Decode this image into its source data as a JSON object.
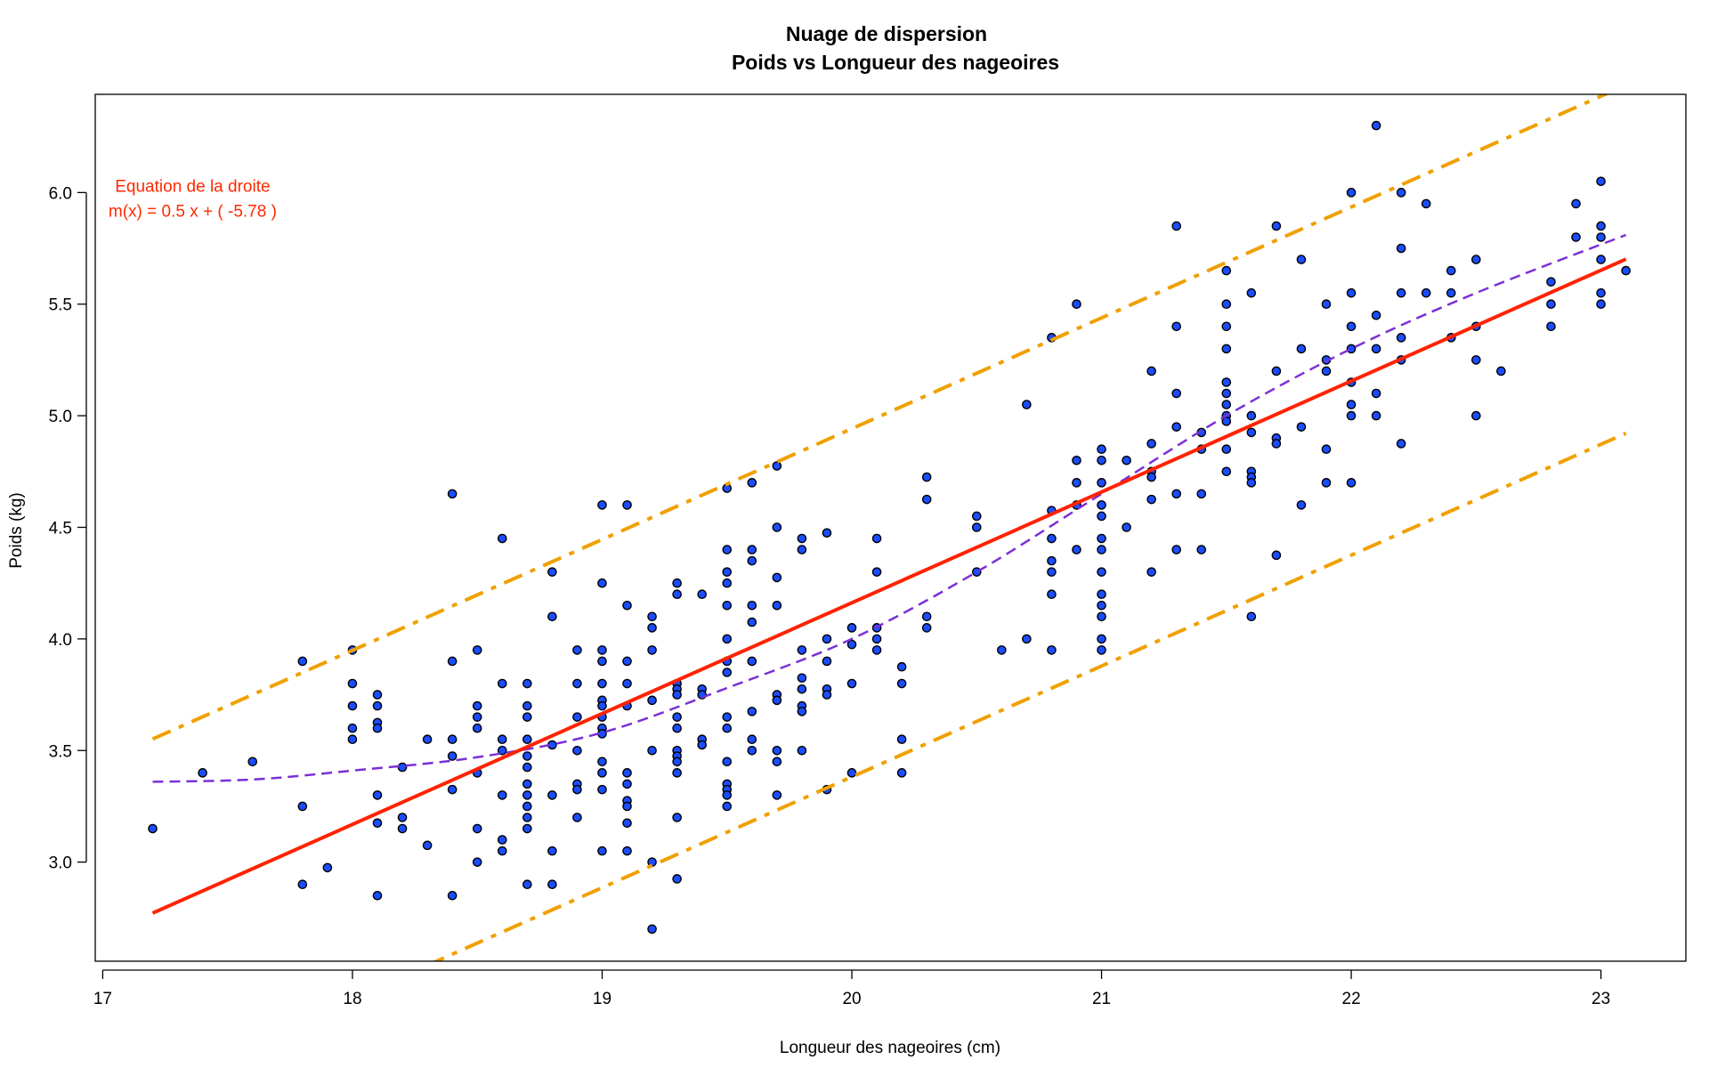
{
  "chart_data": {
    "type": "scatter",
    "title": "Nuage de dispersion",
    "subtitle": "Poids vs Longueur des nageoires",
    "xlabel": "Longueur des nageoires (cm)",
    "ylabel": "Poids (kg)",
    "xlim": [
      16.97,
      23.34
    ],
    "ylim": [
      2.556,
      6.44
    ],
    "xticks": [
      17,
      18,
      19,
      20,
      21,
      22,
      23
    ],
    "xtick_labels": [
      "17",
      "18",
      "19",
      "20",
      "21",
      "22",
      "23"
    ],
    "yticks": [
      3.0,
      3.5,
      4.0,
      4.5,
      5.0,
      5.5,
      6.0
    ],
    "ytick_labels": [
      "3.0",
      "3.5",
      "4.0",
      "4.5",
      "5.0",
      "5.5",
      "6.0"
    ],
    "grid": false,
    "annotation": {
      "line1": "Equation de la droite",
      "line2": "m(x) = 0.5 x + ( -5.78 )",
      "x": 17.36,
      "y": 6.0,
      "color": "#ff2a00"
    },
    "colors": {
      "points_fill": "#1a4dff",
      "points_stroke": "#000000",
      "regression": "#ff2200",
      "interval": "#f0a000",
      "smooth": "#7b2fd6"
    },
    "regression_line": {
      "slope": 0.4966,
      "intercept": -5.77,
      "x_range": [
        17.2,
        23.1
      ]
    },
    "interval_lines": {
      "offset": 0.78,
      "x_range": [
        17.2,
        23.1
      ]
    },
    "smooth_curve": [
      [
        17.2,
        3.36
      ],
      [
        17.6,
        3.37
      ],
      [
        18.0,
        3.41
      ],
      [
        18.5,
        3.47
      ],
      [
        19.0,
        3.58
      ],
      [
        19.5,
        3.78
      ],
      [
        20.0,
        4.0
      ],
      [
        20.5,
        4.3
      ],
      [
        21.0,
        4.65
      ],
      [
        21.5,
        5.0
      ],
      [
        22.0,
        5.3
      ],
      [
        22.5,
        5.55
      ],
      [
        23.1,
        5.81
      ]
    ],
    "points_by_x": [
      [
        17.2,
        [
          3.15
        ]
      ],
      [
        17.4,
        [
          3.4
        ]
      ],
      [
        17.6,
        [
          3.45
        ]
      ],
      [
        17.8,
        [
          3.9,
          3.25,
          2.9
        ]
      ],
      [
        17.9,
        [
          2.975
        ]
      ],
      [
        18.0,
        [
          3.95,
          3.8,
          3.7,
          3.6,
          3.55
        ]
      ],
      [
        18.1,
        [
          3.75,
          3.7,
          3.625,
          3.6,
          3.3,
          3.175,
          2.85
        ]
      ],
      [
        18.2,
        [
          3.425,
          3.2,
          3.15
        ]
      ],
      [
        18.3,
        [
          3.55,
          3.075
        ]
      ],
      [
        18.4,
        [
          4.65,
          3.9,
          3.55,
          3.475,
          3.325,
          2.85
        ]
      ],
      [
        18.5,
        [
          3.95,
          3.7,
          3.65,
          3.6,
          3.4,
          3.15,
          3.0
        ]
      ],
      [
        18.6,
        [
          4.45,
          3.8,
          3.55,
          3.5,
          3.3,
          3.1,
          3.05
        ]
      ],
      [
        18.7,
        [
          3.8,
          3.7,
          3.65,
          3.55,
          3.475,
          3.425,
          3.35,
          3.3,
          3.25,
          3.2,
          3.15,
          2.9
        ]
      ],
      [
        18.8,
        [
          4.3,
          4.1,
          3.525,
          3.3,
          3.05,
          2.9
        ]
      ],
      [
        18.9,
        [
          3.95,
          3.8,
          3.65,
          3.5,
          3.35,
          3.325,
          3.2
        ]
      ],
      [
        19.0,
        [
          4.6,
          4.25,
          3.95,
          3.9,
          3.8,
          3.725,
          3.7,
          3.65,
          3.6,
          3.575,
          3.45,
          3.4,
          3.325,
          3.05
        ]
      ],
      [
        19.1,
        [
          4.6,
          4.15,
          3.9,
          3.8,
          3.7,
          3.4,
          3.35,
          3.275,
          3.25,
          3.175,
          3.05
        ]
      ],
      [
        19.2,
        [
          4.1,
          4.05,
          3.95,
          3.725,
          3.5,
          3.0,
          2.7
        ]
      ],
      [
        19.3,
        [
          4.25,
          4.2,
          3.8,
          3.775,
          3.75,
          3.65,
          3.6,
          3.5,
          3.475,
          3.45,
          3.4,
          3.2,
          2.925
        ]
      ],
      [
        19.4,
        [
          4.2,
          3.775,
          3.75,
          3.55,
          3.525
        ]
      ],
      [
        19.5,
        [
          4.675,
          4.4,
          4.3,
          4.25,
          4.15,
          4.0,
          3.9,
          3.85,
          3.65,
          3.6,
          3.45,
          3.35,
          3.325,
          3.3,
          3.25
        ]
      ],
      [
        19.6,
        [
          4.7,
          4.4,
          4.35,
          4.15,
          4.075,
          3.9,
          3.675,
          3.55,
          3.5
        ]
      ],
      [
        19.7,
        [
          4.775,
          4.5,
          4.275,
          4.15,
          3.75,
          3.725,
          3.5,
          3.45,
          3.3
        ]
      ],
      [
        19.8,
        [
          4.45,
          4.4,
          3.95,
          3.825,
          3.775,
          3.7,
          3.675,
          3.5
        ]
      ],
      [
        19.9,
        [
          4.475,
          4.0,
          3.9,
          3.775,
          3.75,
          3.325
        ]
      ],
      [
        20.0,
        [
          4.05,
          3.975,
          3.8,
          3.4
        ]
      ],
      [
        20.1,
        [
          4.45,
          4.3,
          4.05,
          4.0,
          3.95
        ]
      ],
      [
        20.2,
        [
          3.875,
          3.8,
          3.55,
          3.4
        ]
      ],
      [
        20.3,
        [
          4.725,
          4.625,
          4.1,
          4.05
        ]
      ],
      [
        20.5,
        [
          4.55,
          4.5,
          4.3
        ]
      ],
      [
        20.6,
        [
          3.95
        ]
      ],
      [
        20.7,
        [
          5.05,
          4.0
        ]
      ],
      [
        20.8,
        [
          5.35,
          4.575,
          4.45,
          4.35,
          4.3,
          4.2,
          3.95
        ]
      ],
      [
        20.9,
        [
          5.5,
          4.8,
          4.7,
          4.6,
          4.4
        ]
      ],
      [
        21.0,
        [
          4.85,
          4.8,
          4.7,
          4.6,
          4.55,
          4.45,
          4.4,
          4.3,
          4.2,
          4.15,
          4.1,
          4.0,
          3.95
        ]
      ],
      [
        21.1,
        [
          4.8,
          4.5
        ]
      ],
      [
        21.2,
        [
          5.2,
          4.875,
          4.75,
          4.725,
          4.625,
          4.3
        ]
      ],
      [
        21.3,
        [
          5.85,
          5.4,
          5.1,
          4.95,
          4.65,
          4.4
        ]
      ],
      [
        21.4,
        [
          4.925,
          4.85,
          4.65,
          4.4
        ]
      ],
      [
        21.5,
        [
          5.65,
          5.5,
          5.4,
          5.3,
          5.15,
          5.1,
          5.05,
          5.0,
          4.975,
          4.85,
          4.75
        ]
      ],
      [
        21.6,
        [
          5.55,
          5.0,
          4.925,
          4.75,
          4.725,
          4.7,
          4.1
        ]
      ],
      [
        21.7,
        [
          5.85,
          5.2,
          4.9,
          4.875,
          4.375
        ]
      ],
      [
        21.8,
        [
          5.7,
          5.3,
          4.95,
          4.6
        ]
      ],
      [
        21.9,
        [
          5.5,
          5.25,
          5.2,
          4.85,
          4.7
        ]
      ],
      [
        22.0,
        [
          6.0,
          5.55,
          5.4,
          5.3,
          5.15,
          5.05,
          5.0,
          4.7
        ]
      ],
      [
        22.1,
        [
          6.3,
          5.45,
          5.3,
          5.1,
          5.0
        ]
      ],
      [
        22.2,
        [
          6.0,
          5.75,
          5.55,
          5.35,
          5.25,
          4.875
        ]
      ],
      [
        22.3,
        [
          5.95,
          5.55
        ]
      ],
      [
        22.4,
        [
          5.65,
          5.55,
          5.35
        ]
      ],
      [
        22.5,
        [
          5.7,
          5.4,
          5.25,
          5.0
        ]
      ],
      [
        22.6,
        [
          5.2
        ]
      ],
      [
        22.8,
        [
          5.6,
          5.5,
          5.4
        ]
      ],
      [
        22.9,
        [
          5.95,
          5.8
        ]
      ],
      [
        23.0,
        [
          6.05,
          5.85,
          5.8,
          5.7,
          5.55,
          5.5
        ]
      ],
      [
        23.1,
        [
          5.65
        ]
      ]
    ]
  }
}
